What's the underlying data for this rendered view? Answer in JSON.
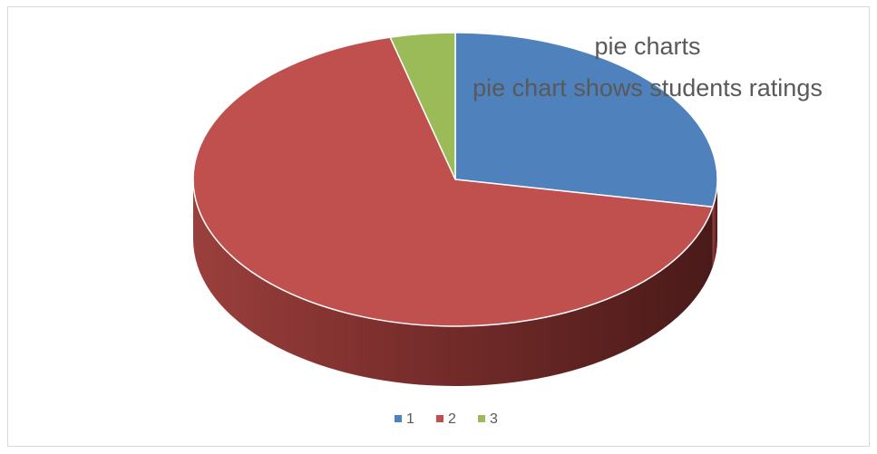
{
  "chart_data": {
    "type": "pie",
    "title": "pie charts",
    "subtitle": "pie chart shows students ratings",
    "categories": [
      "1",
      "2",
      "3"
    ],
    "values": [
      28,
      68,
      4
    ],
    "colors": [
      "#4f81bd",
      "#c0504d",
      "#9bbb59"
    ],
    "legend_position": "bottom",
    "style": "3d"
  }
}
